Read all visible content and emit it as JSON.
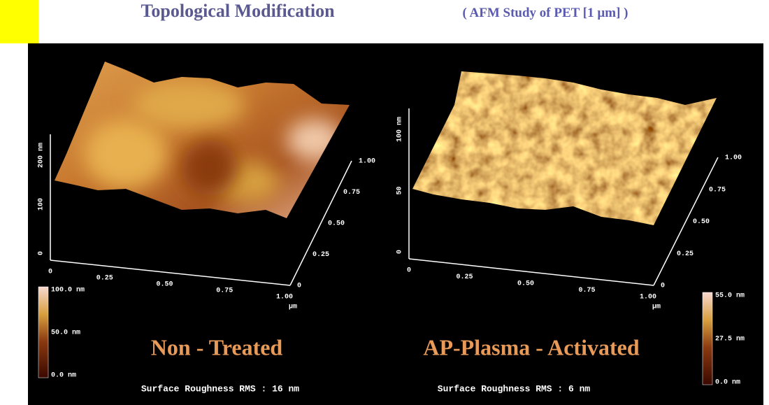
{
  "header": {
    "title": "Topological Modification",
    "subtitle": "( AFM Study of PET [1 µm] )"
  },
  "panels": [
    {
      "z_axis": [
        "0",
        "100",
        "200 nm"
      ],
      "x_axis": [
        "0",
        "0.25",
        "0.50",
        "0.75",
        "1.00"
      ],
      "x_unit": "µm",
      "y_axis": [
        "0",
        "0.25",
        "0.50",
        "0.75",
        "1.00"
      ],
      "colorbar": [
        "100.0 nm",
        "50.0 nm",
        "0.0 nm"
      ],
      "label": "Non - Treated",
      "roughness": "Surface Roughness RMS : 16 nm"
    },
    {
      "z_axis": [
        "0",
        "50",
        "100 nm"
      ],
      "x_axis": [
        "0",
        "0.25",
        "0.50",
        "0.75",
        "1.00"
      ],
      "x_unit": "µm",
      "y_axis": [
        "0",
        "0.25",
        "0.50",
        "0.75",
        "1.00"
      ],
      "colorbar": [
        "55.0 nm",
        "27.5 nm",
        "0.0 nm"
      ],
      "label": "AP-Plasma - Activated",
      "roughness": "Surface Roughness RMS : 6 nm"
    }
  ]
}
